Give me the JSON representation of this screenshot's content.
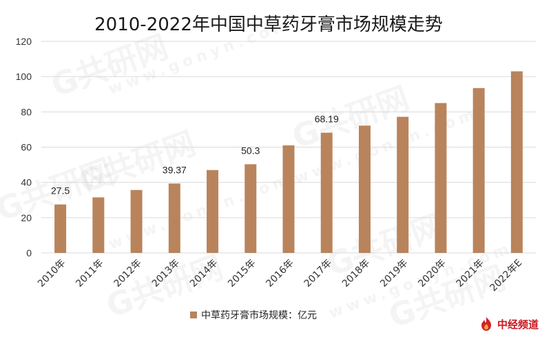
{
  "watermark": {
    "text": "G共研网",
    "sub": "www.gonyn.com"
  },
  "logo": {
    "text": "中经频道"
  },
  "chart_data": {
    "type": "bar",
    "title": "2010-2022年中国中草药牙膏市场规模走势",
    "categories": [
      "2010年",
      "2011年",
      "2012年",
      "2013年",
      "2014年",
      "2015年",
      "2016年",
      "2017年",
      "2018年",
      "2019年",
      "2020年",
      "2021年",
      "2022年E"
    ],
    "series": [
      {
        "name": "中草药牙膏市场规模：亿元",
        "values": [
          27.5,
          31.5,
          35.7,
          39.37,
          47.0,
          50.3,
          61.0,
          68.19,
          72.2,
          77.2,
          85.0,
          93.5,
          103.0
        ],
        "color": "#B9845B"
      }
    ],
    "data_labels": [
      "27.5",
      "",
      "",
      "39.37",
      "",
      "50.3",
      "",
      "68.19",
      "",
      "",
      "",
      "",
      ""
    ],
    "yticks": [
      "0",
      "20",
      "40",
      "60",
      "80",
      "100",
      "120"
    ],
    "ylim": [
      0,
      120
    ],
    "grid": true,
    "legend": "bottom"
  }
}
